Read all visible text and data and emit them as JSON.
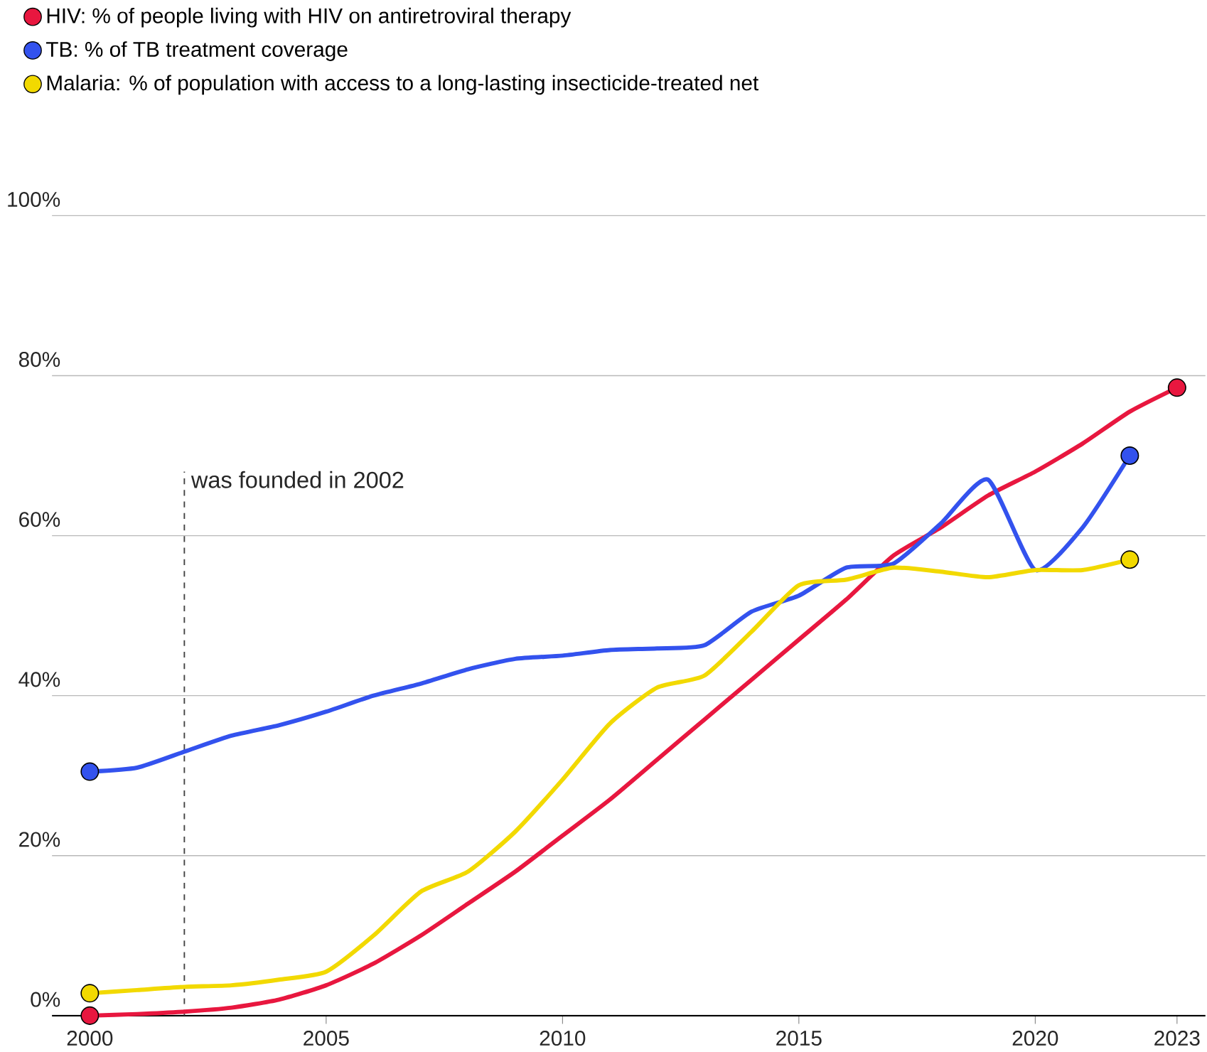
{
  "chart_data": {
    "type": "line",
    "x": [
      2000,
      2001,
      2002,
      2003,
      2004,
      2005,
      2006,
      2007,
      2008,
      2009,
      2010,
      2011,
      2012,
      2013,
      2014,
      2015,
      2016,
      2017,
      2018,
      2019,
      2020,
      2021,
      2022,
      2023
    ],
    "series": [
      {
        "name": "HIV: % of people living with HIV on antiretroviral therapy",
        "color": "#e8173f",
        "values": [
          0,
          0.2,
          0.5,
          1,
          2,
          3.8,
          6.5,
          10,
          14,
          18,
          22.5,
          27,
          32,
          37,
          42,
          47,
          52,
          57.5,
          61,
          65,
          68,
          71.5,
          75.5,
          78.5
        ]
      },
      {
        "name": "TB: % of TB treatment coverage",
        "color": "#3352ee",
        "values": [
          30.5,
          31,
          33,
          35,
          36.3,
          38,
          40,
          41.5,
          43.3,
          44.6,
          45,
          45.7,
          45.9,
          46.3,
          50.5,
          52.5,
          56,
          56.5,
          61.5,
          67,
          55.7,
          61,
          70,
          null
        ]
      },
      {
        "name": "Malaria: % of population with access to a long-lasting insecticide-treated net",
        "color": "#f2d900",
        "values": [
          2.8,
          3.2,
          3.6,
          3.8,
          4.5,
          5.5,
          10,
          15.5,
          18,
          23,
          29.5,
          36.5,
          41,
          42.5,
          48,
          53.8,
          54.5,
          56,
          55.5,
          54.8,
          55.7,
          55.7,
          57,
          null
        ]
      }
    ],
    "xlim": [
      1999.2,
      2023.6
    ],
    "ylim": [
      0,
      100
    ],
    "xticks": [
      2000,
      2005,
      2010,
      2015,
      2020,
      2023
    ],
    "yticks": [
      {
        "value": 0,
        "label": "0%"
      },
      {
        "value": 20,
        "label": "20%"
      },
      {
        "value": 40,
        "label": "40%"
      },
      {
        "value": 60,
        "label": "60%"
      },
      {
        "value": 80,
        "label": "80%"
      },
      {
        "value": 100,
        "label": "100%"
      }
    ],
    "grid": "y",
    "legend": "top left",
    "ref_lines": [
      {
        "axis": "x",
        "value": 2002,
        "label": "was founded in 2002",
        "line_style": "dashed",
        "color": "#444444"
      }
    ]
  }
}
